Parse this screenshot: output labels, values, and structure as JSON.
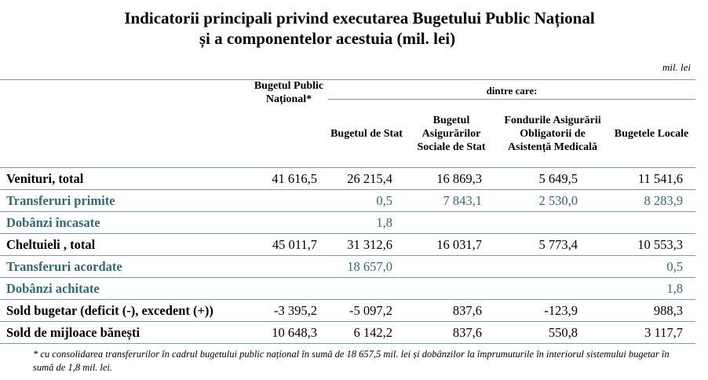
{
  "title": {
    "line1": "Indicatorii principali privind executarea Bugetului Public Național",
    "line2": "și a componentelor acestuia (mil. lei)"
  },
  "unit": "mil. lei",
  "header": {
    "subheading": "dintre care:",
    "columns": [
      "Bugetul Public Național*",
      "Bugetul de Stat",
      "Bugetul Asigurărilor Sociale de Stat",
      "Fondurile Asigurării Obligatorii de Asistență Medicală",
      "Bugetele Locale"
    ]
  },
  "rows": [
    {
      "label": "Venituri, total",
      "values": [
        "41 616,5",
        "26 215,4",
        "16 869,3",
        "5 649,5",
        "11 541,6"
      ]
    },
    {
      "label": "Transferuri primite",
      "values": [
        "",
        "0,5",
        "7 843,1",
        "2 530,0",
        "8 283,9"
      ]
    },
    {
      "label": "Dobânzi încasate",
      "values": [
        "",
        "1,8",
        "",
        "",
        ""
      ]
    },
    {
      "label": "Cheltuieli , total",
      "values": [
        "45 011,7",
        "31 312,6",
        "16 031,7",
        "5 773,4",
        "10 553,3"
      ]
    },
    {
      "label": "Transferuri acordate",
      "values": [
        "",
        "18 657,0",
        "",
        "",
        "0,5"
      ]
    },
    {
      "label": "Dobânzi achitate",
      "values": [
        "",
        "",
        "",
        "",
        "1,8"
      ]
    },
    {
      "label": "Sold bugetar (deficit (-), excedent (+))",
      "values": [
        "-3 395,2",
        "-5 097,2",
        "837,6",
        "-123,9",
        "988,3"
      ]
    },
    {
      "label": "Sold de mijloace bănești",
      "values": [
        "10 648,3",
        "6 142,2",
        "837,6",
        "550,8",
        "3 117,7"
      ]
    }
  ],
  "footnote": "* cu consolidarea transferurilor în cadrul bugetului public național în sumă de  18 657,5  mil. lei și dobânzilor la împrumuturile în interiorul sistemului bugetar în sumă de 1,8 mil. lei.",
  "colors": {
    "accent_text": "#2e6a74",
    "rule": "#6fa3a8"
  }
}
